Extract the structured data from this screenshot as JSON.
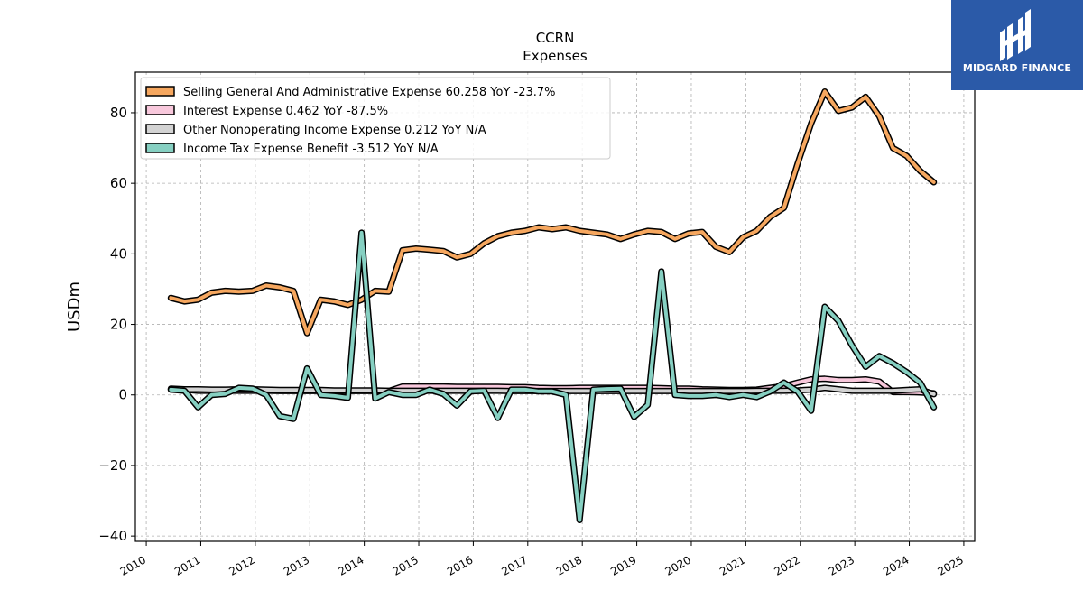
{
  "chart_data": {
    "type": "line",
    "title": "CCRN",
    "subtitle": "Expenses",
    "ylabel": "USDm",
    "xlabel": "",
    "xlim": [
      2009.8,
      2025.2
    ],
    "ylim": [
      -41.5,
      91.5
    ],
    "x_ticks": [
      2010,
      2011,
      2012,
      2013,
      2014,
      2015,
      2016,
      2017,
      2018,
      2019,
      2020,
      2021,
      2022,
      2023,
      2024,
      2025
    ],
    "y_ticks": [
      -40,
      -20,
      0,
      20,
      40,
      60,
      80
    ],
    "y_tick_labels": [
      "−40",
      "−20",
      "0",
      "20",
      "40",
      "60",
      "80"
    ],
    "grid": true,
    "legend_position": "top-left",
    "x": [
      2010.45,
      2010.7,
      2010.95,
      2011.2,
      2011.45,
      2011.7,
      2011.95,
      2012.2,
      2012.45,
      2012.7,
      2012.95,
      2013.2,
      2013.45,
      2013.7,
      2013.95,
      2014.2,
      2014.45,
      2014.7,
      2014.95,
      2015.2,
      2015.45,
      2015.7,
      2015.95,
      2016.2,
      2016.45,
      2016.7,
      2016.95,
      2017.2,
      2017.45,
      2017.7,
      2017.95,
      2018.2,
      2018.45,
      2018.7,
      2018.95,
      2019.2,
      2019.45,
      2019.7,
      2019.95,
      2020.2,
      2020.45,
      2020.7,
      2020.95,
      2021.2,
      2021.45,
      2021.7,
      2021.95,
      2022.2,
      2022.45,
      2022.7,
      2022.95,
      2023.2,
      2023.45,
      2023.7,
      2023.95,
      2024.2,
      2024.45
    ],
    "series": [
      {
        "name": "Selling General And Administrative Expense",
        "legend_label": "Selling General And Administrative Expense  60.258 YoY -23.7%",
        "color": "#f6a75f",
        "values": [
          27.5,
          26.5,
          27,
          29,
          29.5,
          29.3,
          29.5,
          31,
          30.5,
          29.5,
          17.5,
          27,
          26.5,
          25.5,
          27,
          29.5,
          29.3,
          41,
          41.5,
          41.2,
          40.8,
          39,
          40,
          43,
          45,
          46,
          46.5,
          47.5,
          47,
          47.5,
          46.5,
          46,
          45.5,
          44.2,
          45.5,
          46.5,
          46.2,
          44.2,
          45.8,
          46.2,
          42,
          40.5,
          44.7,
          46.5,
          50.5,
          53,
          65.5,
          77,
          86,
          80.5,
          81.5,
          84.5,
          79,
          70,
          67.8,
          63.5,
          60.3
        ]
      },
      {
        "name": "Interest Expense",
        "legend_label": "Interest Expense  0.462 YoY -87.5%",
        "color": "#f8c8dc",
        "values": [
          1.5,
          1.5,
          1.2,
          1.2,
          1.2,
          1.2,
          1.2,
          1.2,
          1.1,
          1.1,
          1.1,
          1.1,
          1.1,
          1.1,
          1.1,
          1.1,
          1.1,
          2.4,
          2.4,
          2.4,
          2.4,
          2.3,
          2.3,
          2.3,
          2.3,
          2.2,
          2.2,
          2,
          1.9,
          1.9,
          2,
          2,
          2,
          2,
          2,
          2,
          1.9,
          1.8,
          1.8,
          1.6,
          1.5,
          1.4,
          1.4,
          1.5,
          2,
          2.5,
          3.5,
          4.4,
          4.6,
          4.2,
          4.2,
          4.4,
          3.8,
          0.8,
          0.8,
          0.7,
          0.46
        ]
      },
      {
        "name": "Other Nonoperating Income Expense",
        "legend_label": "Other Nonoperating Income Expense  0.212 YoY N/A",
        "color": "#d3d3d3",
        "values": [
          1.8,
          1.6,
          1.6,
          1.5,
          1.5,
          1.6,
          1.6,
          1.5,
          1.4,
          1.4,
          1.4,
          1.4,
          1.3,
          1.3,
          1.3,
          1.3,
          1.2,
          1.2,
          1.2,
          1.2,
          1.2,
          1.2,
          1.2,
          1.2,
          1.2,
          1.1,
          1.1,
          1.1,
          1.1,
          1.1,
          1.1,
          1.1,
          1.1,
          1.1,
          1.1,
          1.1,
          1.1,
          1.1,
          1.1,
          1.1,
          1.1,
          1.1,
          1.1,
          1.2,
          1.2,
          1.2,
          1.3,
          1.5,
          2,
          1.6,
          1.2,
          1.2,
          1.2,
          1.2,
          1.4,
          1.6,
          0.21
        ]
      },
      {
        "name": "Income Tax Expense Benefit",
        "legend_label": "Income Tax Expense Benefit  -3.512 YoY N/A",
        "color": "#86d0c2",
        "values": [
          1.5,
          1.2,
          -3.5,
          0,
          0.3,
          2,
          1.8,
          0,
          -6,
          -6.8,
          7.5,
          0,
          -0.3,
          -0.8,
          46,
          -1,
          0.8,
          0,
          0,
          1.5,
          0.3,
          -3,
          1,
          1.2,
          -6.5,
          1.5,
          1.5,
          1,
          1,
          0,
          -35.5,
          1.5,
          1.7,
          1.8,
          -6.2,
          -2.8,
          35,
          0,
          -0.3,
          -0.3,
          0,
          -0.6,
          0,
          -0.6,
          1,
          3.5,
          1,
          -4.5,
          25,
          21,
          14,
          8,
          11,
          9,
          6.5,
          3.5,
          -3.5
        ]
      }
    ]
  },
  "logo": {
    "text": "MIDGARD FINANCE"
  }
}
